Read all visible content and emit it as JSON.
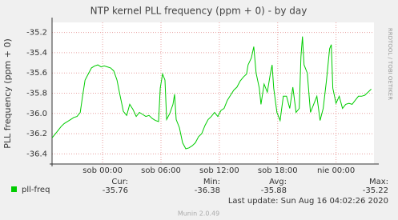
{
  "chart_data": {
    "type": "line",
    "title": "NTP kernel PLL frequency (ppm + 0) - by day",
    "y_label": "PLL frequency (ppm + 0)",
    "side_label": "RRDTOOL / TOBI OETIKER",
    "x": [
      -5.18,
      -4.93,
      -4.6,
      -4.27,
      -3.95,
      -3.62,
      -3.29,
      -2.96,
      -2.63,
      -2.3,
      -2.06,
      -1.81,
      -1.48,
      -1.15,
      -0.82,
      -0.49,
      -0.16,
      0.16,
      0.49,
      0.82,
      1.15,
      1.48,
      1.81,
      2.14,
      2.47,
      2.79,
      3.12,
      3.45,
      3.78,
      4.11,
      4.44,
      4.77,
      5.1,
      5.42,
      5.75,
      5.92,
      6.16,
      6.41,
      6.58,
      6.9,
      7.23,
      7.4,
      7.56,
      7.89,
      8.22,
      8.55,
      8.88,
      9.21,
      9.54,
      9.86,
      10.19,
      10.52,
      10.85,
      11.18,
      11.51,
      11.84,
      12.17,
      12.49,
      12.82,
      13.15,
      13.48,
      13.81,
      14.14,
      14.47,
      14.8,
      14.96,
      15.29,
      15.54,
      15.78,
      16.11,
      16.28,
      16.6,
      16.93,
      17.26,
      17.43,
      17.59,
      17.92,
      18.25,
      18.58,
      18.91,
      19.24,
      19.56,
      19.89,
      20.22,
      20.39,
      20.55,
      20.71,
      21.04,
      21.37,
      21.7,
      22.03,
      22.36,
      22.68,
      23.01,
      23.34,
      23.51,
      23.67,
      24.0,
      24.33,
      24.66,
      24.99,
      25.32,
      25.65,
      25.97,
      26.3,
      26.63,
      26.96,
      27.29,
      27.62
    ],
    "series": [
      {
        "name": "pll-freq",
        "color": "#00cc00",
        "values": [
          -36.24,
          -36.21,
          -36.17,
          -36.13,
          -36.1,
          -36.08,
          -36.06,
          -36.04,
          -36.03,
          -35.99,
          -35.83,
          -35.67,
          -35.61,
          -35.55,
          -35.53,
          -35.52,
          -35.54,
          -35.53,
          -35.54,
          -35.55,
          -35.58,
          -35.67,
          -35.83,
          -35.98,
          -36.02,
          -35.91,
          -35.96,
          -36.03,
          -35.99,
          -36.01,
          -36.03,
          -36.02,
          -36.05,
          -36.07,
          -36.08,
          -35.75,
          -35.61,
          -35.67,
          -36.06,
          -36.0,
          -35.91,
          -35.81,
          -36.06,
          -36.14,
          -36.29,
          -36.35,
          -36.34,
          -36.32,
          -36.29,
          -36.23,
          -36.2,
          -36.12,
          -36.06,
          -36.03,
          -35.99,
          -36.03,
          -35.97,
          -35.95,
          -35.87,
          -35.82,
          -35.77,
          -35.74,
          -35.68,
          -35.64,
          -35.61,
          -35.52,
          -35.45,
          -35.34,
          -35.6,
          -35.75,
          -35.91,
          -35.71,
          -35.79,
          -35.6,
          -35.52,
          -35.75,
          -35.99,
          -36.07,
          -35.83,
          -35.83,
          -35.95,
          -35.74,
          -35.99,
          -35.95,
          -35.44,
          -35.24,
          -35.52,
          -35.6,
          -35.99,
          -35.91,
          -35.83,
          -36.07,
          -35.95,
          -35.68,
          -35.36,
          -35.32,
          -35.75,
          -35.9,
          -35.83,
          -35.95,
          -35.91,
          -35.9,
          -35.91,
          -35.87,
          -35.83,
          -35.83,
          -35.82,
          -35.79,
          -35.76
        ]
      }
    ],
    "xlim": [
      -5.2,
      27.9
    ],
    "xticks": [
      {
        "value": 0,
        "label": "sob 00:00"
      },
      {
        "value": 6,
        "label": "sob 06:00"
      },
      {
        "value": 12,
        "label": "sob 12:00"
      },
      {
        "value": 18,
        "label": "sob 18:00"
      },
      {
        "value": 24,
        "label": "nie 00:00"
      }
    ],
    "ylim": [
      -36.5,
      -35.1
    ],
    "yticks": [
      -35.2,
      -35.4,
      -35.6,
      -35.8,
      {
        "value": -36,
        "label": "-36.0"
      },
      -36.2,
      -36.4
    ],
    "grid": true,
    "stats": {
      "headers": [
        "Cur:",
        "Min:",
        "Avg:",
        "Max:"
      ],
      "values": [
        -35.76,
        -36.38,
        -35.88,
        -35.22
      ]
    },
    "last_update": "Last update: Sun Aug 16 04:02:26 2020",
    "footer": "Munin 2.0.49"
  }
}
